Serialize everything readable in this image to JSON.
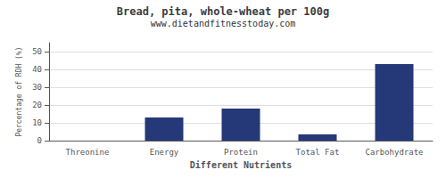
{
  "chart_data": {
    "type": "bar",
    "title": "Bread, pita, whole-wheat per 100g",
    "subtitle": "www.dietandfitnesstoday.com",
    "xlabel": "Different Nutrients",
    "ylabel": "Percentage of RDH (%)",
    "categories": [
      "Threonine",
      "Energy",
      "Protein",
      "Total Fat",
      "Carbohydrate"
    ],
    "values": [
      0,
      13,
      18,
      3.5,
      43
    ],
    "color": "#253878",
    "ylim": [
      0,
      55
    ],
    "yticks": [
      0,
      10,
      20,
      30,
      40,
      50
    ],
    "grid": true
  }
}
